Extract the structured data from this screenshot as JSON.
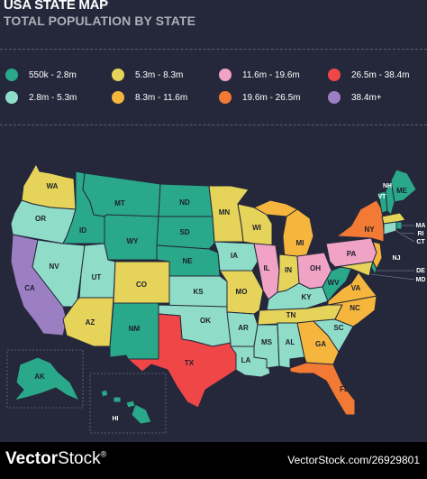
{
  "header": {
    "title": "USA STATE MAP",
    "subtitle": "TOTAL POPULATION BY STATE"
  },
  "legend": [
    {
      "label": "550k - 2.8m",
      "color": "#2aa88a"
    },
    {
      "label": "5.3m - 8.3m",
      "color": "#e6d45a"
    },
    {
      "label": "11.6m - 19.6m",
      "color": "#f0a3c4"
    },
    {
      "label": "26.5m - 38.4m",
      "color": "#ef4748"
    },
    {
      "label": "2.8m - 5.3m",
      "color": "#8fdcc8"
    },
    {
      "label": "8.3m - 11.6m",
      "color": "#f6b63e"
    },
    {
      "label": "19.6m - 26.5m",
      "color": "#f27a34"
    },
    {
      "label": "38.4m+",
      "color": "#9b7fc2"
    }
  ],
  "states": {
    "WA": {
      "label": "WA",
      "tier": "5.3m - 8.3m"
    },
    "OR": {
      "label": "OR",
      "tier": "2.8m - 5.3m"
    },
    "CA": {
      "label": "CA",
      "tier": "38.4m+"
    },
    "ID": {
      "label": "ID",
      "tier": "550k - 2.8m"
    },
    "NV": {
      "label": "NV",
      "tier": "2.8m - 5.3m"
    },
    "UT": {
      "label": "UT",
      "tier": "2.8m - 5.3m"
    },
    "AZ": {
      "label": "AZ",
      "tier": "5.3m - 8.3m"
    },
    "MT": {
      "label": "MT",
      "tier": "550k - 2.8m"
    },
    "WY": {
      "label": "WY",
      "tier": "550k - 2.8m"
    },
    "CO": {
      "label": "CO",
      "tier": "5.3m - 8.3m"
    },
    "NM": {
      "label": "NM",
      "tier": "550k - 2.8m"
    },
    "ND": {
      "label": "ND",
      "tier": "550k - 2.8m"
    },
    "SD": {
      "label": "SD",
      "tier": "550k - 2.8m"
    },
    "NE": {
      "label": "NE",
      "tier": "550k - 2.8m"
    },
    "KS": {
      "label": "KS",
      "tier": "2.8m - 5.3m"
    },
    "OK": {
      "label": "OK",
      "tier": "2.8m - 5.3m"
    },
    "TX": {
      "label": "TX",
      "tier": "26.5m - 38.4m"
    },
    "MN": {
      "label": "MN",
      "tier": "5.3m - 8.3m"
    },
    "IA": {
      "label": "IA",
      "tier": "2.8m - 5.3m"
    },
    "MO": {
      "label": "MO",
      "tier": "5.3m - 8.3m"
    },
    "AR": {
      "label": "AR",
      "tier": "2.8m - 5.3m"
    },
    "LA": {
      "label": "LA",
      "tier": "2.8m - 5.3m"
    },
    "WI": {
      "label": "WI",
      "tier": "5.3m - 8.3m"
    },
    "IL": {
      "label": "IL",
      "tier": "11.6m - 19.6m"
    },
    "MI": {
      "label": "MI",
      "tier": "8.3m - 11.6m"
    },
    "IN": {
      "label": "IN",
      "tier": "5.3m - 8.3m"
    },
    "OH": {
      "label": "OH",
      "tier": "11.6m - 19.6m"
    },
    "KY": {
      "label": "KY",
      "tier": "2.8m - 5.3m"
    },
    "TN": {
      "label": "TN",
      "tier": "5.3m - 8.3m"
    },
    "MS": {
      "label": "MS",
      "tier": "2.8m - 5.3m"
    },
    "AL": {
      "label": "AL",
      "tier": "2.8m - 5.3m"
    },
    "GA": {
      "label": "GA",
      "tier": "8.3m - 11.6m"
    },
    "FL": {
      "label": "FL",
      "tier": "19.6m - 26.5m"
    },
    "SC": {
      "label": "SC",
      "tier": "2.8m - 5.3m"
    },
    "NC": {
      "label": "NC",
      "tier": "8.3m - 11.6m"
    },
    "VA": {
      "label": "VA",
      "tier": "8.3m - 11.6m"
    },
    "WV": {
      "label": "WV",
      "tier": "550k - 2.8m"
    },
    "PA": {
      "label": "PA",
      "tier": "11.6m - 19.6m"
    },
    "NY": {
      "label": "NY",
      "tier": "19.6m - 26.5m"
    },
    "VT": {
      "label": "VT",
      "tier": "550k - 2.8m"
    },
    "NH": {
      "label": "NH",
      "tier": "550k - 2.8m"
    },
    "ME": {
      "label": "ME",
      "tier": "550k - 2.8m"
    },
    "MA": {
      "label": "MA",
      "tier": "5.3m - 8.3m"
    },
    "RI": {
      "label": "RI",
      "tier": "550k - 2.8m"
    },
    "CT": {
      "label": "CT",
      "tier": "2.8m - 5.3m"
    },
    "NJ": {
      "label": "NJ",
      "tier": "8.3m - 11.6m"
    },
    "DE": {
      "label": "DE",
      "tier": "550k - 2.8m"
    },
    "MD": {
      "label": "MD",
      "tier": "5.3m - 8.3m"
    },
    "AK": {
      "label": "AK",
      "tier": "550k - 2.8m"
    },
    "HI": {
      "label": "HI",
      "tier": "550k - 2.8m"
    }
  },
  "footer": {
    "brand_bold": "Vector",
    "brand_rest": "Stock",
    "brand_mark": "®",
    "credit": "VectorStock.com/26929801"
  }
}
